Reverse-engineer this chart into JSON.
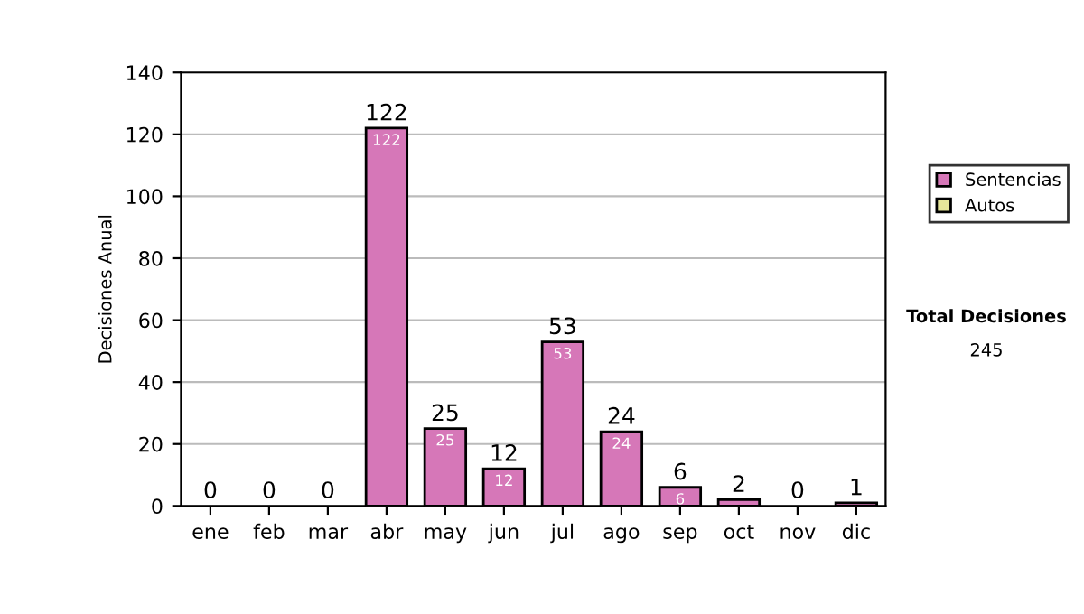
{
  "chart_data": {
    "type": "bar",
    "stacked": true,
    "ylabel": "Decisiones Anual",
    "categories": [
      "ene",
      "feb",
      "mar",
      "abr",
      "may",
      "jun",
      "jul",
      "ago",
      "sep",
      "oct",
      "nov",
      "dic"
    ],
    "series": [
      {
        "name": "Sentencias",
        "color": "#d677b8",
        "values": [
          0,
          0,
          0,
          122,
          25,
          12,
          53,
          24,
          6,
          2,
          0,
          1
        ],
        "value_labels": [
          null,
          null,
          null,
          "122",
          "25",
          "12",
          "53",
          "24",
          "6",
          null,
          null,
          null
        ]
      },
      {
        "name": "Autos",
        "color": "#e6e69a",
        "values": [
          0,
          0,
          0,
          0,
          0,
          0,
          0,
          0,
          0,
          0,
          0,
          0
        ]
      }
    ],
    "totals": [
      "0",
      "0",
      "0",
      "122",
      "25",
      "12",
      "53",
      "24",
      "6",
      "2",
      "0",
      "1"
    ],
    "ylim": [
      0,
      140
    ],
    "yticks": [
      0,
      20,
      40,
      60,
      80,
      100,
      120,
      140
    ],
    "grid": "y",
    "legend": "right",
    "annotations": [
      "Total Decisiones",
      "245"
    ]
  }
}
